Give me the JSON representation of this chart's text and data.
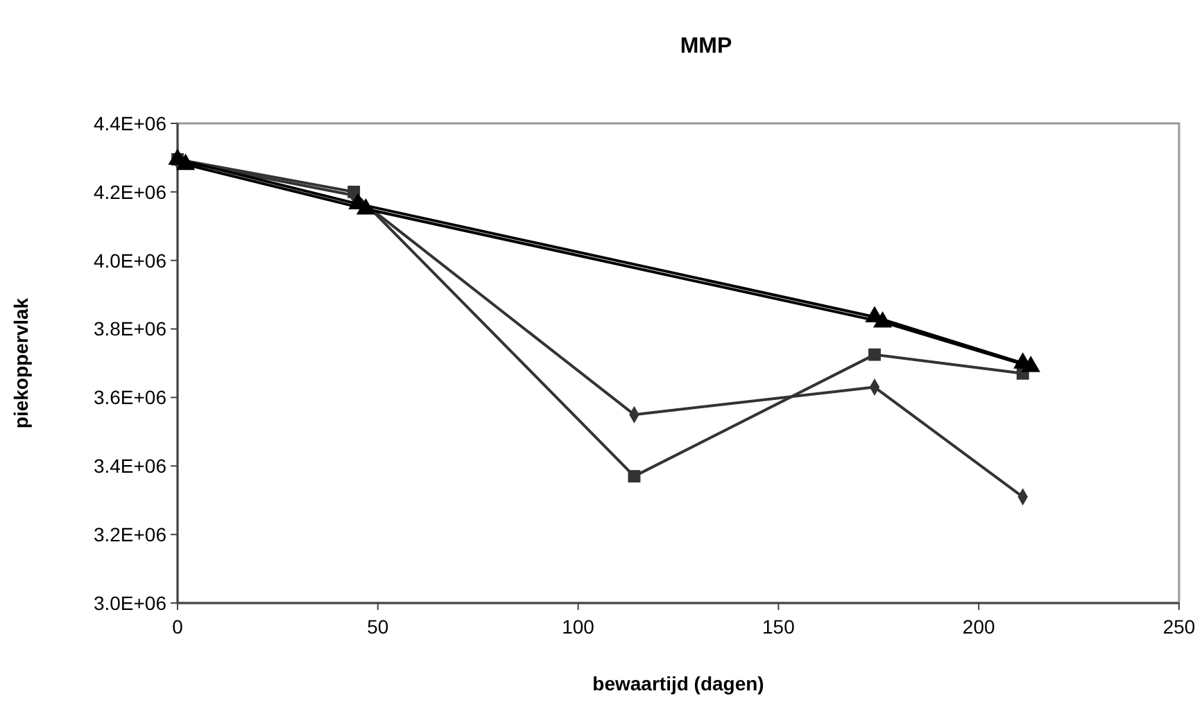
{
  "chart_data": {
    "type": "line",
    "title": "MMP",
    "xlabel": "bewaartijd (dagen)",
    "ylabel": "piekoppervlak",
    "xlim": [
      0,
      250
    ],
    "xticks": [
      0,
      50,
      100,
      150,
      200,
      250
    ],
    "ylim": [
      3000000,
      4400000
    ],
    "yticks": [
      {
        "value": 3000000,
        "label": "3.0E+06"
      },
      {
        "value": 3200000,
        "label": "3.2E+06"
      },
      {
        "value": 3400000,
        "label": "3.4E+06"
      },
      {
        "value": 3600000,
        "label": "3.6E+06"
      },
      {
        "value": 3800000,
        "label": "3.8E+06"
      },
      {
        "value": 4000000,
        "label": "4.0E+06"
      },
      {
        "value": 4200000,
        "label": "4.2E+06"
      },
      {
        "value": 4400000,
        "label": "4.4E+06"
      }
    ],
    "grid": false,
    "series": [
      {
        "color": "#333333",
        "marker": "diamond",
        "x": [
          0,
          44,
          114,
          174,
          211
        ],
        "values": [
          4290000,
          4190000,
          3550000,
          3630000,
          3310000
        ]
      },
      {
        "color": "#333333",
        "marker": "square",
        "x": [
          0,
          44,
          114,
          174,
          211
        ],
        "values": [
          4295000,
          4200000,
          3370000,
          3725000,
          3670000
        ]
      },
      {
        "color": "#000000",
        "marker": "triangle",
        "x": [
          0,
          45,
          174,
          211
        ],
        "values": [
          4295000,
          4165000,
          3835000,
          3700000
        ]
      },
      {
        "color": "#000000",
        "marker": "triangle",
        "x": [
          2,
          47,
          176,
          213
        ],
        "values": [
          4280000,
          4150000,
          3820000,
          3690000
        ]
      }
    ]
  }
}
